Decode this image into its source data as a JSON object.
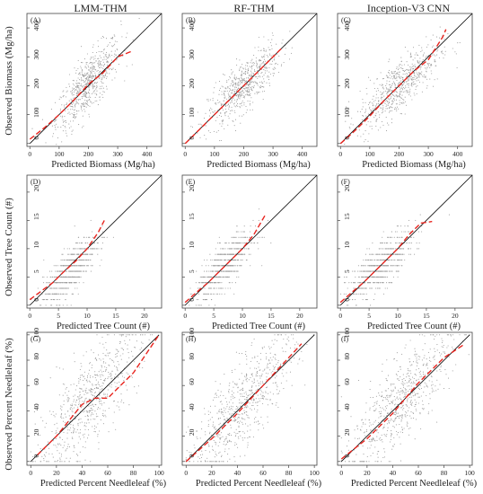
{
  "column_titles": [
    "LMM-THM",
    "RF-THM",
    "Inception-V3 CNN"
  ],
  "row_labels": {
    "y": [
      "Observed Biomass (Mg/ha)",
      "Observed Tree Count (#)",
      "Observed Percent Needleleaf (%)"
    ],
    "x": [
      "Predicted Biomass (Mg/ha)",
      "Predicted Tree Count (#)",
      "Predicted Percent Needleleaf (%)"
    ]
  },
  "colors": {
    "points": "#9a9a9a",
    "identity": "#000000",
    "smooth": "#e8251f"
  },
  "chart_data": [
    {
      "type": "scatter",
      "panel": "(A)",
      "title": "LMM-THM",
      "xlabel": "Predicted Biomass (Mg/ha)",
      "ylabel": "Observed Biomass (Mg/ha)",
      "xlim": [
        -10,
        450
      ],
      "ylim": [
        -10,
        450
      ],
      "xticks": [
        0,
        100,
        200,
        300,
        400
      ],
      "yticks": [
        0,
        100,
        200,
        300,
        400
      ],
      "points": {
        "cx": 200,
        "cy": 205,
        "sx": 55,
        "sy": 80,
        "n": 650
      },
      "identity_line": [
        [
          0,
          0
        ],
        [
          450,
          450
        ]
      ],
      "smooth_line": {
        "name": "",
        "x": [
          0,
          50,
          100,
          150,
          200,
          250,
          300,
          350
        ],
        "y": [
          15,
          55,
          100,
          150,
          205,
          245,
          300,
          320
        ]
      }
    },
    {
      "type": "scatter",
      "panel": "(B)",
      "title": "RF-THM",
      "xlabel": "Predicted Biomass (Mg/ha)",
      "ylabel": "Observed Biomass (Mg/ha)",
      "xlim": [
        -10,
        450
      ],
      "ylim": [
        -10,
        450
      ],
      "xticks": [
        0,
        100,
        200,
        300,
        400
      ],
      "yticks": [
        0,
        100,
        200,
        300,
        400
      ],
      "points": {
        "cx": 200,
        "cy": 200,
        "sx": 60,
        "sy": 70,
        "n": 650
      },
      "identity_line": [
        [
          0,
          0
        ],
        [
          450,
          450
        ]
      ],
      "smooth_line": {
        "name": "",
        "x": [
          0,
          50,
          100,
          150,
          200,
          250,
          300,
          330
        ],
        "y": [
          0,
          50,
          100,
          150,
          200,
          250,
          300,
          330
        ]
      }
    },
    {
      "type": "scatter",
      "panel": "(C)",
      "title": "Inception-V3 CNN",
      "xlabel": "Predicted Biomass (Mg/ha)",
      "ylabel": "Observed Biomass (Mg/ha)",
      "xlim": [
        -10,
        450
      ],
      "ylim": [
        -10,
        450
      ],
      "xticks": [
        0,
        100,
        200,
        300,
        400
      ],
      "yticks": [
        0,
        100,
        200,
        300,
        400
      ],
      "points": {
        "cx": 200,
        "cy": 200,
        "sx": 70,
        "sy": 75,
        "n": 650
      },
      "identity_line": [
        [
          0,
          0
        ],
        [
          450,
          450
        ]
      ],
      "smooth_line": {
        "name": "",
        "x": [
          0,
          50,
          100,
          150,
          200,
          250,
          300,
          350,
          360
        ],
        "y": [
          0,
          45,
          95,
          150,
          200,
          250,
          290,
          370,
          395
        ]
      }
    },
    {
      "type": "scatter",
      "panel": "(D)",
      "title": "",
      "xlabel": "Predicted Tree Count (#)",
      "ylabel": "Observed Tree Count (#)",
      "xlim": [
        -0.5,
        23
      ],
      "ylim": [
        -0.5,
        23
      ],
      "xticks": [
        0,
        5,
        10,
        15,
        20
      ],
      "yticks": [
        0,
        5,
        10,
        15,
        20
      ],
      "points": {
        "cx": 7,
        "cy": 6,
        "sx": 2.3,
        "sy": 3.2,
        "n": 650,
        "integer_y": true
      },
      "identity_line": [
        [
          0,
          0
        ],
        [
          23,
          23
        ]
      ],
      "smooth_line": {
        "name": "",
        "x": [
          0,
          2,
          4,
          6,
          8,
          10,
          12,
          13
        ],
        "y": [
          1,
          2.5,
          4,
          6,
          7.8,
          10,
          13,
          15
        ]
      }
    },
    {
      "type": "scatter",
      "panel": "(E)",
      "title": "",
      "xlabel": "Predicted Tree Count (#)",
      "ylabel": "Observed Tree Count (#)",
      "xlim": [
        -0.5,
        23
      ],
      "ylim": [
        -0.5,
        23
      ],
      "xticks": [
        0,
        5,
        10,
        15,
        20
      ],
      "yticks": [
        0,
        5,
        10,
        15,
        20
      ],
      "points": {
        "cx": 7,
        "cy": 7,
        "sx": 2.5,
        "sy": 3.2,
        "n": 650,
        "integer_y": true
      },
      "identity_line": [
        [
          0,
          0
        ],
        [
          23,
          23
        ]
      ],
      "smooth_line": {
        "name": "",
        "x": [
          0,
          2,
          4,
          6,
          8,
          10,
          12,
          14
        ],
        "y": [
          0.5,
          2.3,
          4,
          6,
          8,
          10,
          12.5,
          16
        ]
      }
    },
    {
      "type": "scatter",
      "panel": "(F)",
      "title": "",
      "xlabel": "Predicted Tree Count (#)",
      "ylabel": "Observed Tree Count (#)",
      "xlim": [
        -0.5,
        23
      ],
      "ylim": [
        -0.5,
        23
      ],
      "xticks": [
        0,
        5,
        10,
        15,
        20
      ],
      "yticks": [
        0,
        5,
        10,
        15,
        20
      ],
      "points": {
        "cx": 7,
        "cy": 7,
        "sx": 2.8,
        "sy": 3.2,
        "n": 650,
        "integer_y": true
      },
      "identity_line": [
        [
          0,
          0
        ],
        [
          23,
          23
        ]
      ],
      "smooth_line": {
        "name": "",
        "x": [
          0,
          2,
          4,
          6,
          8,
          10,
          12,
          14,
          16
        ],
        "y": [
          0.5,
          2.3,
          4,
          6,
          8,
          10,
          12.5,
          14.5,
          14.8
        ]
      }
    },
    {
      "type": "scatter",
      "panel": "(G)",
      "title": "",
      "xlabel": "Predicted Percent Needleleaf (%)",
      "ylabel": "Observed Percent Needleleaf (%)",
      "xlim": [
        -3,
        102
      ],
      "ylim": [
        -3,
        102
      ],
      "xticks": [
        0,
        20,
        40,
        60,
        80,
        100
      ],
      "yticks": [
        0,
        20,
        40,
        60,
        80,
        100
      ],
      "points": {
        "cx": 45,
        "cy": 48,
        "sx": 20,
        "sy": 30,
        "n": 650,
        "clip": [
          0,
          100
        ]
      },
      "identity_line": [
        [
          0,
          0
        ],
        [
          100,
          100
        ]
      ],
      "smooth_line": {
        "name": "",
        "x": [
          5,
          20,
          40,
          50,
          60,
          80,
          100
        ],
        "y": [
          5,
          20,
          45,
          50,
          50,
          70,
          100
        ]
      }
    },
    {
      "type": "scatter",
      "panel": "(H)",
      "title": "",
      "xlabel": "Predicted Percent Needleleaf (%)",
      "ylabel": "Observed Percent Needleleaf (%)",
      "xlim": [
        -3,
        102
      ],
      "ylim": [
        -3,
        102
      ],
      "xticks": [
        0,
        20,
        40,
        60,
        80,
        100
      ],
      "yticks": [
        0,
        20,
        40,
        60,
        80,
        100
      ],
      "points": {
        "cx": 45,
        "cy": 45,
        "sx": 20,
        "sy": 28,
        "n": 650,
        "clip": [
          0,
          100
        ]
      },
      "identity_line": [
        [
          0,
          0
        ],
        [
          100,
          100
        ]
      ],
      "smooth_line": {
        "name": "",
        "x": [
          0,
          20,
          40,
          60,
          80,
          90
        ],
        "y": [
          0,
          18,
          38,
          60,
          82,
          93
        ]
      }
    },
    {
      "type": "scatter",
      "panel": "(I)",
      "title": "",
      "xlabel": "Predicted Percent Needleleaf (%)",
      "ylabel": "Observed Percent Needleleaf (%)",
      "xlim": [
        -3,
        102
      ],
      "ylim": [
        -3,
        102
      ],
      "xticks": [
        0,
        20,
        40,
        60,
        80,
        100
      ],
      "yticks": [
        0,
        20,
        40,
        60,
        80,
        100
      ],
      "points": {
        "cx": 45,
        "cy": 47,
        "sx": 20,
        "sy": 28,
        "n": 650,
        "clip": [
          0,
          100
        ]
      },
      "identity_line": [
        [
          0,
          0
        ],
        [
          100,
          100
        ]
      ],
      "smooth_line": {
        "name": "",
        "x": [
          0,
          20,
          40,
          60,
          80,
          95
        ],
        "y": [
          2,
          18,
          38,
          62,
          82,
          92
        ]
      }
    }
  ]
}
